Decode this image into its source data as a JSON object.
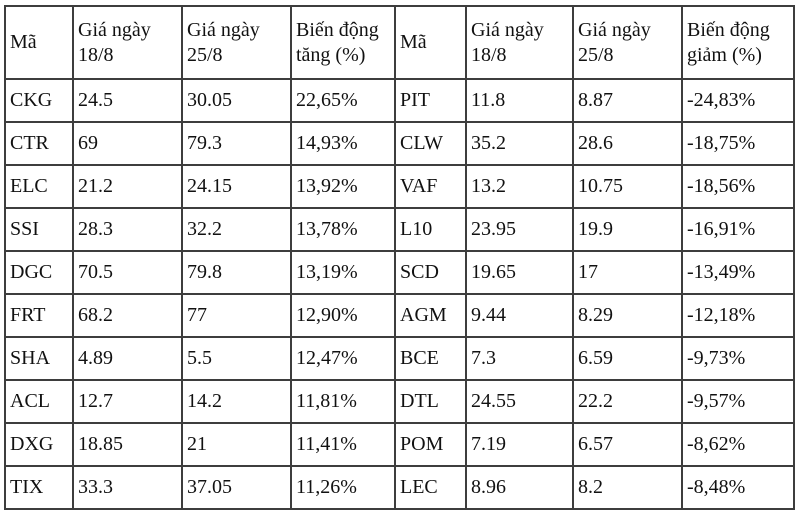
{
  "table": {
    "headers": [
      "Mã",
      "Giá ngày 18/8",
      "Giá ngày 25/8",
      "Biến động tăng (%)",
      "Mã",
      "Giá ngày 18/8",
      "Giá ngày 25/8",
      "Biến động giảm (%)"
    ],
    "gainers": [
      {
        "code": "CKG",
        "d18": "24.5",
        "d25": "30.05",
        "pct": "22,65%"
      },
      {
        "code": "CTR",
        "d18": "69",
        "d25": "79.3",
        "pct": "14,93%"
      },
      {
        "code": "ELC",
        "d18": "21.2",
        "d25": "24.15",
        "pct": "13,92%"
      },
      {
        "code": "SSI",
        "d18": "28.3",
        "d25": "32.2",
        "pct": "13,78%"
      },
      {
        "code": "DGC",
        "d18": "70.5",
        "d25": "79.8",
        "pct": "13,19%"
      },
      {
        "code": "FRT",
        "d18": "68.2",
        "d25": "77",
        "pct": "12,90%"
      },
      {
        "code": "SHA",
        "d18": "4.89",
        "d25": "5.5",
        "pct": "12,47%"
      },
      {
        "code": "ACL",
        "d18": "12.7",
        "d25": "14.2",
        "pct": "11,81%"
      },
      {
        "code": "DXG",
        "d18": "18.85",
        "d25": "21",
        "pct": "11,41%"
      },
      {
        "code": "TIX",
        "d18": "33.3",
        "d25": "37.05",
        "pct": "11,26%"
      }
    ],
    "losers": [
      {
        "code": "PIT",
        "d18": "11.8",
        "d25": "8.87",
        "pct": "-24,83%"
      },
      {
        "code": "CLW",
        "d18": "35.2",
        "d25": "28.6",
        "pct": "-18,75%"
      },
      {
        "code": "VAF",
        "d18": "13.2",
        "d25": "10.75",
        "pct": "-18,56%"
      },
      {
        "code": "L10",
        "d18": "23.95",
        "d25": "19.9",
        "pct": "-16,91%"
      },
      {
        "code": "SCD",
        "d18": "19.65",
        "d25": "17",
        "pct": "-13,49%"
      },
      {
        "code": "AGM",
        "d18": "9.44",
        "d25": "8.29",
        "pct": "-12,18%"
      },
      {
        "code": "BCE",
        "d18": "7.3",
        "d25": "6.59",
        "pct": "-9,73%"
      },
      {
        "code": "DTL",
        "d18": "24.55",
        "d25": "22.2",
        "pct": "-9,57%"
      },
      {
        "code": "POM",
        "d18": "7.19",
        "d25": "6.57",
        "pct": "-8,62%"
      },
      {
        "code": "LEC",
        "d18": "8.96",
        "d25": "8.2",
        "pct": "-8,48%"
      }
    ],
    "border_color": "#3d3d3d",
    "text_color": "#111111",
    "background_color": "#ffffff"
  }
}
